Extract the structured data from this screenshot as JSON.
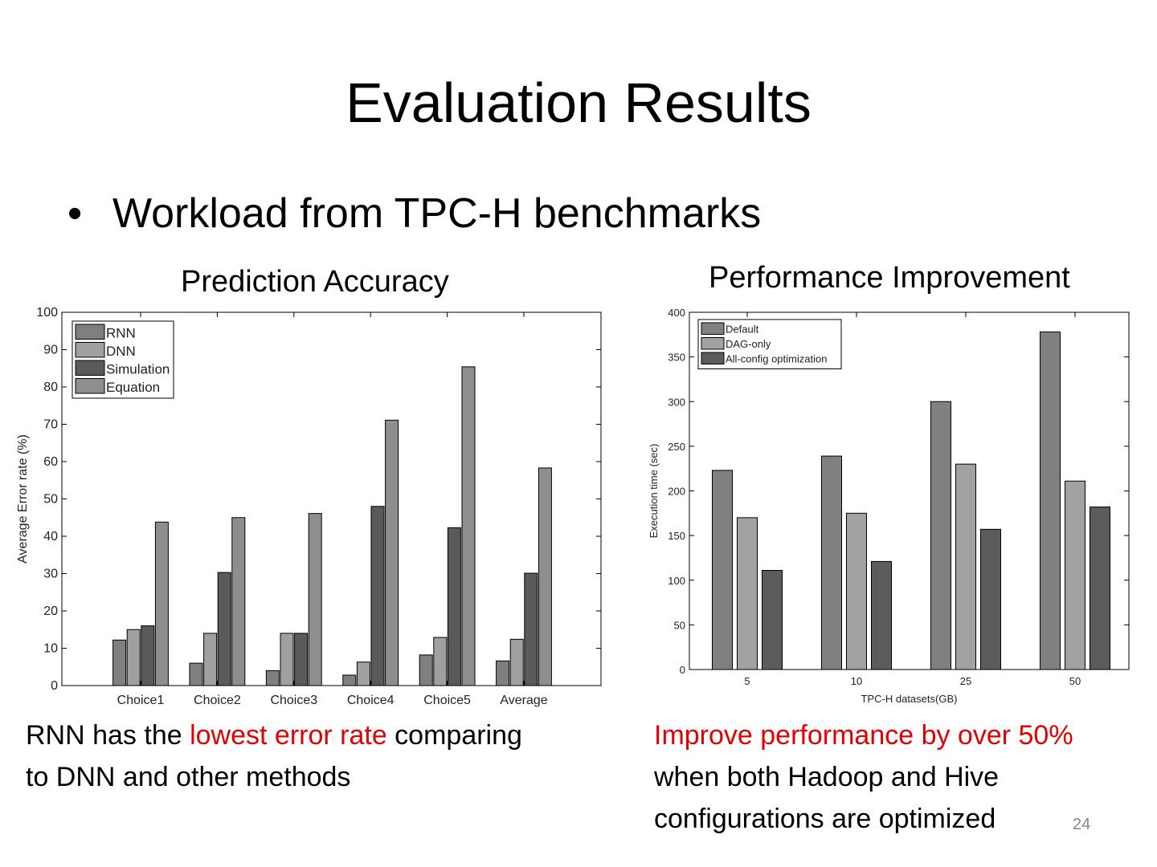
{
  "slide": {
    "title": "Evaluation Results",
    "bullet_symbol": "•",
    "bullet": "Workload from TPC-H benchmarks",
    "left_caption": {
      "a": "RNN has the ",
      "highlight": "lowest error rate",
      "b": " comparing",
      "line2": "to DNN and other methods"
    },
    "right_caption": {
      "highlight": "Improve performance by over 50%",
      "line2": "when both Hadoop and Hive",
      "line3": "configurations are optimized"
    },
    "page_number": "24",
    "highlight_color": "#e00000"
  },
  "chart_data": [
    {
      "type": "bar",
      "title": "Prediction Accuracy",
      "xlabel": "",
      "ylabel": "Average Error rate (%)",
      "ylim": [
        0,
        100
      ],
      "yticks": [
        0,
        10,
        20,
        30,
        40,
        50,
        60,
        70,
        80,
        90,
        100
      ],
      "categories": [
        "Choice1",
        "Choice2",
        "Choice3",
        "Choice4",
        "Choice5",
        "Average"
      ],
      "legend_position": "top-left",
      "series": [
        {
          "name": "RNN",
          "color": "#7f7f7f",
          "values": [
            12.2,
            6.0,
            4.0,
            2.8,
            8.2,
            6.6
          ]
        },
        {
          "name": "DNN",
          "color": "#a0a0a0",
          "values": [
            15.0,
            14.0,
            14.0,
            6.3,
            12.9,
            12.4
          ]
        },
        {
          "name": "Simulation",
          "color": "#5a5a5a",
          "values": [
            16.0,
            30.3,
            14.0,
            48.0,
            42.3,
            30.1
          ]
        },
        {
          "name": "Equation",
          "color": "#8e8e8e",
          "values": [
            43.8,
            45.0,
            46.1,
            71.1,
            85.4,
            58.3
          ]
        }
      ]
    },
    {
      "type": "bar",
      "title": "Performance Improvement",
      "xlabel": "TPC-H datasets(GB)",
      "ylabel": "Execution time (sec)",
      "ylim": [
        0,
        400
      ],
      "yticks": [
        0,
        50,
        100,
        150,
        200,
        250,
        300,
        350,
        400
      ],
      "categories": [
        "5",
        "10",
        "25",
        "50"
      ],
      "legend_position": "top-left",
      "series": [
        {
          "name": "Default",
          "color": "#808080",
          "values": [
            223,
            239,
            300,
            378
          ]
        },
        {
          "name": "DAG-only",
          "color": "#a2a2a2",
          "values": [
            170,
            175,
            230,
            211
          ]
        },
        {
          "name": "All-config optimization",
          "color": "#5c5c5c",
          "values": [
            111,
            121,
            157,
            182
          ]
        }
      ]
    }
  ]
}
